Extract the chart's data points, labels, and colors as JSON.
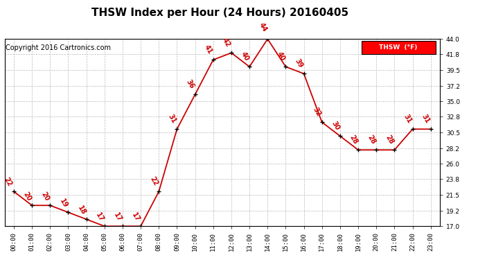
{
  "title": "THSW Index per Hour (24 Hours) 20160405",
  "copyright": "Copyright 2016 Cartronics.com",
  "legend_label": "THSW  (°F)",
  "hours": [
    0,
    1,
    2,
    3,
    4,
    5,
    6,
    7,
    8,
    9,
    10,
    11,
    12,
    13,
    14,
    15,
    16,
    17,
    18,
    19,
    20,
    21,
    22,
    23
  ],
  "values": [
    22,
    20,
    20,
    19,
    18,
    17,
    17,
    17,
    22,
    31,
    36,
    41,
    42,
    40,
    44,
    40,
    39,
    32,
    30,
    28,
    28,
    28,
    31,
    31
  ],
  "ylim_min": 17.0,
  "ylim_max": 44.0,
  "yticks": [
    17.0,
    19.2,
    21.5,
    23.8,
    26.0,
    28.2,
    30.5,
    32.8,
    35.0,
    37.2,
    39.5,
    41.8,
    44.0
  ],
  "ytick_labels": [
    "17.0",
    "19.2",
    "21.5",
    "23.8",
    "26.0",
    "28.2",
    "30.5",
    "32.8",
    "35.0",
    "37.2",
    "39.5",
    "41.8",
    "44.0"
  ],
  "line_color": "#cc0000",
  "marker_color": "black",
  "label_color": "#cc0000",
  "bg_color": "white",
  "grid_color": "#bbbbbb",
  "title_fontsize": 11,
  "copyright_fontsize": 7,
  "label_fontsize": 7,
  "tick_fontsize": 6.5,
  "legend_bg": "red",
  "legend_text_color": "white"
}
